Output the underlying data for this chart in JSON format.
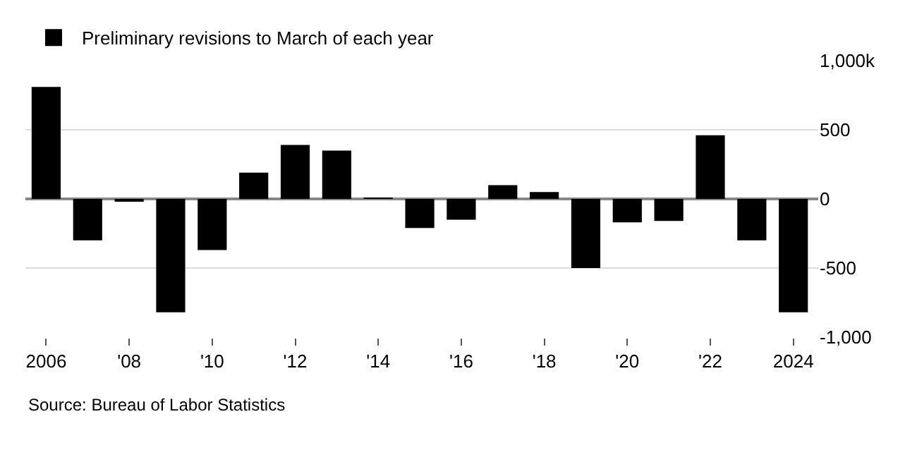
{
  "chart_data": {
    "type": "bar",
    "x": [
      2006,
      2007,
      2008,
      2009,
      2010,
      2011,
      2012,
      2013,
      2014,
      2015,
      2016,
      2017,
      2018,
      2019,
      2020,
      2021,
      2022,
      2023,
      2024
    ],
    "series": [
      {
        "name": "Preliminary revisions to March of each year",
        "color": "#000000",
        "values": [
          810,
          -300,
          -20,
          -820,
          -370,
          190,
          390,
          350,
          10,
          -210,
          -150,
          100,
          50,
          -500,
          -170,
          -160,
          460,
          -300,
          -820
        ]
      }
    ],
    "xlim": [
      2005.5,
      2024.6
    ],
    "xticks": [
      2006,
      {
        "value": 2008,
        "label": "'08"
      },
      {
        "value": 2010,
        "label": "'10"
      },
      {
        "value": 2012,
        "label": "'12"
      },
      {
        "value": 2014,
        "label": "'14"
      },
      {
        "value": 2016,
        "label": "'16"
      },
      {
        "value": 2018,
        "label": "'18"
      },
      {
        "value": 2020,
        "label": "'20"
      },
      {
        "value": 2022,
        "label": "'22"
      },
      2024
    ],
    "ylim": [
      -1000,
      1000
    ],
    "yticks": [
      {
        "value": 1000,
        "label": "1,000k"
      },
      500,
      0,
      -500,
      {
        "value": -1000,
        "label": "-1,000"
      }
    ],
    "grid": "y",
    "legend": "top left",
    "annotations": [
      "Source: Bureau of Labor Statistics"
    ]
  }
}
